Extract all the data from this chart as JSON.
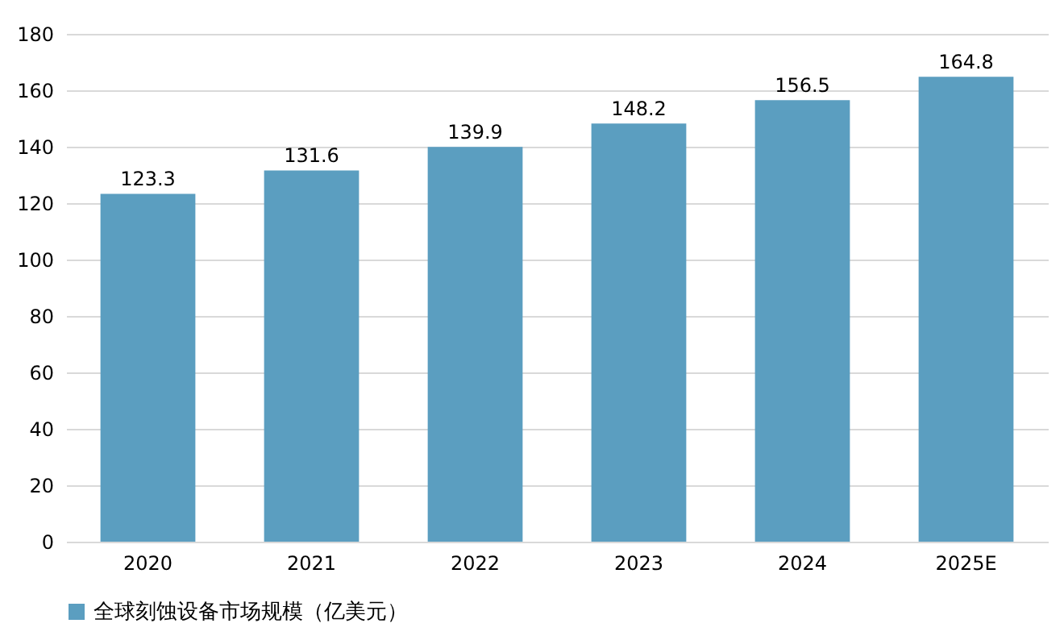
{
  "chart_data": {
    "type": "bar",
    "categories": [
      "2020",
      "2021",
      "2022",
      "2023",
      "2024",
      "2025E"
    ],
    "series": [
      {
        "name": "全球刻蚀设备市场规模（亿美元）",
        "color": "#5b9ec0",
        "values": [
          123.3,
          131.6,
          139.9,
          148.2,
          156.5,
          164.8
        ]
      }
    ],
    "ylim": [
      0,
      180
    ],
    "yticks": [
      0,
      20,
      40,
      60,
      80,
      100,
      120,
      140,
      160,
      180
    ],
    "grid": "y",
    "legend": "bottom",
    "data_labels": true
  }
}
